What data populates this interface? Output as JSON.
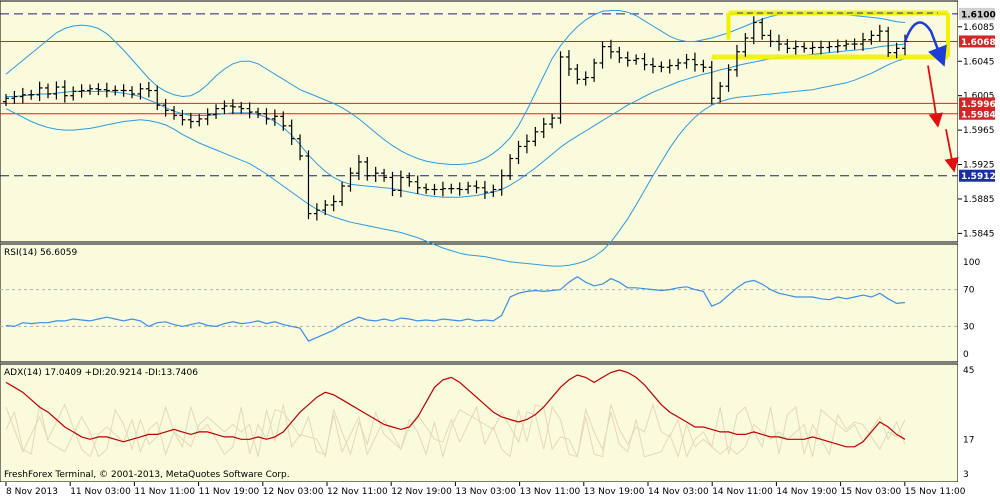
{
  "colors": {
    "background": "#fafadc",
    "panel_border": "#000000",
    "bars": "#000000",
    "bollinger": "#2f9be0",
    "support_resistance": "#e02020",
    "dashed_level": "#1a237e",
    "channel_highlight": "#f2f200",
    "forecast_blue": "#1e3cd8",
    "forecast_red": "#e01010",
    "rsi_line": "#3c8ee8",
    "adx_main": "#c00000",
    "adx_aux": "#e6d8b8",
    "price_tag_red": "#d02828",
    "price_tag_blue": "#1c2fa0",
    "price_tag_gray": "#d0d0d0"
  },
  "chart_data": [
    {
      "type": "candlestick",
      "panel": "price",
      "ylim": [
        1.5835,
        1.6115
      ],
      "y_ticks": [
        "1.6085",
        "1.6045",
        "1.6005",
        "1.5965",
        "1.5925",
        "1.5885",
        "1.5845"
      ],
      "levels": [
        {
          "value": 1.61,
          "label": "1.6100",
          "style": "dashed",
          "tag": "gray"
        },
        {
          "value": 1.6068,
          "label": "1.6068",
          "style": "solid-red",
          "tag": "red"
        },
        {
          "value": 1.5996,
          "label": "1.5996",
          "style": "solid-red",
          "tag": "red"
        },
        {
          "value": 1.5984,
          "label": "1.5984",
          "style": "solid-red",
          "tag": "red"
        },
        {
          "value": 1.5912,
          "label": "1.5912",
          "style": "dashed",
          "tag": "blue"
        }
      ],
      "close": [
        1.6002,
        1.6004,
        1.6006,
        1.6006,
        1.6014,
        1.6007,
        1.6015,
        1.6005,
        1.601,
        1.6011,
        1.6013,
        1.6012,
        1.6011,
        1.6011,
        1.6011,
        1.6007,
        1.6013,
        1.6011,
        1.5994,
        1.5988,
        1.5982,
        1.5977,
        1.5975,
        1.5978,
        1.5983,
        1.599,
        1.5993,
        1.5992,
        1.599,
        1.5986,
        1.5984,
        1.5978,
        1.5981,
        1.597,
        1.5955,
        1.5935,
        1.5868,
        1.5872,
        1.5878,
        1.5882,
        1.59,
        1.5915,
        1.5928,
        1.5912,
        1.5915,
        1.591,
        1.5895,
        1.591,
        1.5905,
        1.5898,
        1.5896,
        1.5896,
        1.5897,
        1.5897,
        1.5896,
        1.59,
        1.5898,
        1.5893,
        1.5896,
        1.5912,
        1.5932,
        1.5946,
        1.5952,
        1.5963,
        1.5972,
        1.5979,
        1.605,
        1.6036,
        1.6024,
        1.6026,
        1.6043,
        1.6062,
        1.6056,
        1.6049,
        1.6046,
        1.6048,
        1.6041,
        1.6039,
        1.6038,
        1.604,
        1.6043,
        1.6047,
        1.6041,
        1.6038,
        1.6002,
        1.6016,
        1.6035,
        1.6056,
        1.6072,
        1.609,
        1.6075,
        1.6068,
        1.6065,
        1.606,
        1.6062,
        1.606,
        1.6061,
        1.6061,
        1.6062,
        1.6063,
        1.6065,
        1.6065,
        1.607,
        1.6075,
        1.608,
        1.6055,
        1.606,
        1.6068
      ],
      "bands_mid": [
        1.6004,
        1.6004,
        1.6005,
        1.6006,
        1.6007,
        1.6007,
        1.6008,
        1.6009,
        1.601,
        1.601,
        1.601,
        1.601,
        1.601,
        1.6009,
        1.6008,
        1.6006,
        1.6004,
        1.6,
        1.5996,
        1.5991,
        1.5987,
        1.5984,
        1.5982,
        1.5982,
        1.5982,
        1.5983,
        1.5984,
        1.5985,
        1.5985,
        1.5985,
        1.5983,
        1.598,
        1.5975,
        1.5968,
        1.5959,
        1.5948,
        1.5936,
        1.5926,
        1.5917,
        1.591,
        1.5905,
        1.5902,
        1.5901,
        1.59,
        1.5899,
        1.5898,
        1.5897,
        1.5895,
        1.5893,
        1.5891,
        1.5889,
        1.5888,
        1.5887,
        1.5887,
        1.5887,
        1.5888,
        1.5889,
        1.5891,
        1.5893,
        1.5896,
        1.5901,
        1.5907,
        1.5914,
        1.5921,
        1.5929,
        1.5937,
        1.5945,
        1.5952,
        1.5958,
        1.5964,
        1.597,
        1.5976,
        1.5982,
        1.5988,
        1.5994,
        1.5999,
        1.6004,
        1.6009,
        1.6013,
        1.6017,
        1.6021,
        1.6024,
        1.6027,
        1.603,
        1.6032,
        1.6035,
        1.6037,
        1.604,
        1.6042,
        1.6044,
        1.6046,
        1.6048,
        1.6049,
        1.605,
        1.6051,
        1.6052,
        1.6053,
        1.6054,
        1.6055,
        1.6056,
        1.6057,
        1.6058,
        1.6059,
        1.606,
        1.6062,
        1.6063,
        1.6064,
        1.6065
      ],
      "bands_upper": [
        1.603,
        1.6038,
        1.6046,
        1.6054,
        1.6062,
        1.607,
        1.6078,
        1.6083,
        1.6086,
        1.6087,
        1.6086,
        1.6083,
        1.6077,
        1.6068,
        1.6058,
        1.6047,
        1.6036,
        1.6025,
        1.6016,
        1.601,
        1.6006,
        1.6004,
        1.6005,
        1.601,
        1.6018,
        1.6028,
        1.6036,
        1.6042,
        1.6045,
        1.6045,
        1.6042,
        1.6036,
        1.603,
        1.6024,
        1.6018,
        1.6012,
        1.6008,
        1.6004,
        1.6,
        1.5996,
        1.5991,
        1.5985,
        1.5978,
        1.597,
        1.5962,
        1.5954,
        1.5947,
        1.5941,
        1.5936,
        1.5932,
        1.5929,
        1.5927,
        1.5926,
        1.5925,
        1.5925,
        1.5926,
        1.5928,
        1.5932,
        1.5938,
        1.5946,
        1.5956,
        1.597,
        1.5988,
        1.6008,
        1.6028,
        1.6048,
        1.6063,
        1.6075,
        1.6085,
        1.6093,
        1.6099,
        1.6103,
        1.6104,
        1.6104,
        1.6102,
        1.6098,
        1.6092,
        1.6086,
        1.608,
        1.6074,
        1.607,
        1.6068,
        1.6068,
        1.607,
        1.6072,
        1.6075,
        1.6078,
        1.6082,
        1.6086,
        1.609,
        1.6094,
        1.6097,
        1.6099,
        1.61,
        1.61,
        1.61,
        1.61,
        1.61,
        1.61,
        1.6099,
        1.6099,
        1.6098,
        1.6097,
        1.6096,
        1.6095,
        1.6093,
        1.6091,
        1.609
      ],
      "bands_lower": [
        1.599,
        1.5985,
        1.598,
        1.5975,
        1.5971,
        1.5968,
        1.5966,
        1.5965,
        1.5965,
        1.5966,
        1.5967,
        1.5969,
        1.5971,
        1.5973,
        1.5975,
        1.5976,
        1.5977,
        1.5976,
        1.5974,
        1.5971,
        1.5966,
        1.596,
        1.5955,
        1.595,
        1.5946,
        1.5942,
        1.5938,
        1.5934,
        1.593,
        1.5926,
        1.592,
        1.5914,
        1.5907,
        1.59,
        1.5893,
        1.5886,
        1.5879,
        1.5873,
        1.5868,
        1.5864,
        1.5861,
        1.5858,
        1.5856,
        1.5854,
        1.5852,
        1.585,
        1.5848,
        1.5846,
        1.5843,
        1.584,
        1.5836,
        1.5832,
        1.5828,
        1.5825,
        1.5822,
        1.582,
        1.5819,
        1.5818,
        1.5816,
        1.5814,
        1.5812,
        1.5811,
        1.581,
        1.5809,
        1.5808,
        1.5807,
        1.5807,
        1.5808,
        1.581,
        1.5813,
        1.5818,
        1.5825,
        1.5835,
        1.5848,
        1.5862,
        1.5878,
        1.5895,
        1.5912,
        1.5928,
        1.5944,
        1.5958,
        1.597,
        1.598,
        1.5988,
        1.5994,
        1.5998,
        1.6001,
        1.6003,
        1.6004,
        1.6005,
        1.6006,
        1.6007,
        1.6008,
        1.6009,
        1.601,
        1.6011,
        1.6012,
        1.6014,
        1.6016,
        1.6018,
        1.602,
        1.6023,
        1.6027,
        1.6031,
        1.6036,
        1.6041,
        1.6045,
        1.6048
      ]
    },
    {
      "type": "line",
      "panel": "rsi",
      "title": "RSI(14) 56.6059",
      "ylim": [
        0,
        100
      ],
      "y_ticks": [
        "100",
        "70",
        "30",
        "0"
      ],
      "levels": [
        70,
        30
      ],
      "series": [
        {
          "values": [
            31,
            30,
            34,
            33,
            34,
            34,
            36,
            36,
            38,
            37,
            36,
            38,
            40,
            38,
            36,
            38,
            36,
            30,
            34,
            35,
            32,
            30,
            32,
            34,
            31,
            30,
            33,
            35,
            33,
            34,
            36,
            33,
            35,
            32,
            30,
            28,
            14,
            18,
            22,
            26,
            32,
            36,
            40,
            37,
            36,
            38,
            36,
            39,
            38,
            36,
            37,
            36,
            38,
            37,
            36,
            38,
            36,
            37,
            36,
            42,
            62,
            66,
            68,
            69,
            68,
            69,
            70,
            78,
            84,
            78,
            74,
            76,
            82,
            78,
            72,
            72,
            71,
            70,
            69,
            70,
            72,
            73,
            70,
            68,
            52,
            56,
            64,
            72,
            78,
            80,
            76,
            70,
            66,
            64,
            62,
            62,
            62,
            60,
            59,
            62,
            60,
            62,
            64,
            62,
            66,
            60,
            55,
            56
          ]
        }
      ]
    },
    {
      "type": "line",
      "panel": "adx",
      "title": "ADX(14) 17.0409 +DI:20.9214 -DI:13.7406",
      "ylim": [
        3,
        45
      ],
      "y_ticks": [
        "45",
        "17",
        "3"
      ],
      "series": [
        {
          "values": [
            40,
            38,
            36,
            33,
            30,
            28,
            25,
            22,
            20,
            18,
            17,
            18,
            18,
            17,
            16,
            17,
            18,
            19,
            19,
            20,
            21,
            20,
            19,
            20,
            20,
            19,
            18,
            18,
            17,
            17,
            18,
            17,
            18,
            20,
            24,
            28,
            31,
            34,
            36,
            35,
            33,
            31,
            29,
            27,
            25,
            23,
            22,
            21,
            22,
            26,
            32,
            38,
            41,
            42,
            40,
            37,
            34,
            31,
            28,
            26,
            25,
            24,
            25,
            27,
            30,
            34,
            38,
            41,
            43,
            42,
            40,
            42,
            44,
            45,
            44,
            42,
            39,
            35,
            31,
            28,
            26,
            24,
            22,
            22,
            21,
            20,
            20,
            19,
            19,
            20,
            19,
            18,
            18,
            17,
            17,
            17,
            18,
            17,
            16,
            15,
            14,
            14,
            16,
            20,
            24,
            22,
            19,
            17
          ]
        }
      ]
    }
  ],
  "x_axis_labels": [
    "8 Nov 2013",
    "11 Nov 03:00",
    "11 Nov 11:00",
    "11 Nov 19:00",
    "12 Nov 03:00",
    "12 Nov 11:00",
    "12 Nov 19:00",
    "13 Nov 03:00",
    "13 Nov 11:00",
    "13 Nov 19:00",
    "14 Nov 03:00",
    "14 Nov 11:00",
    "14 Nov 19:00",
    "15 Nov 03:00",
    "15 Nov 11:00"
  ],
  "footer": "FreshForex Terminal, © 2001-2013, MetaQuotes Software Corp."
}
